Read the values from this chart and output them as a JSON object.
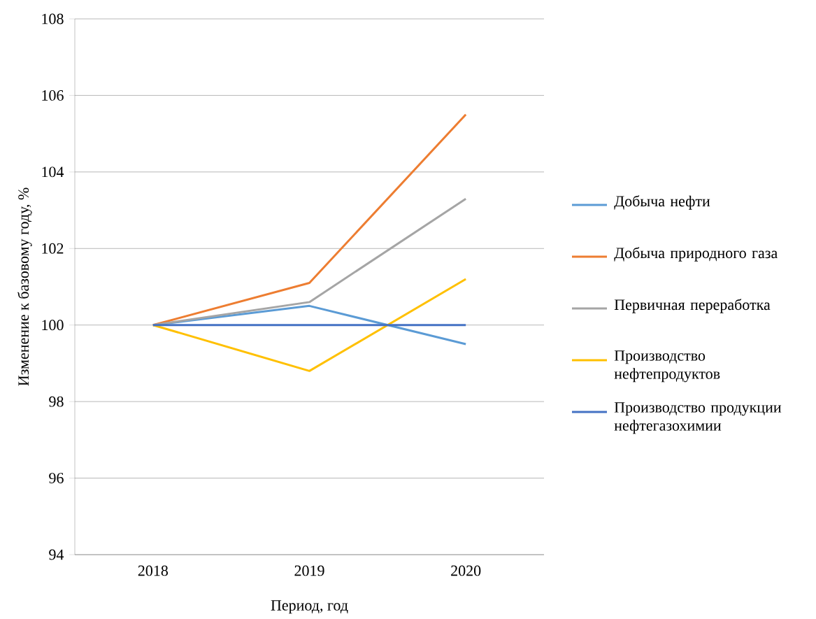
{
  "chart_data": {
    "type": "line",
    "xlabel": "Период, год",
    "ylabel": "Изменение к базовому году,  %",
    "categories": [
      "2018",
      "2019",
      "2020"
    ],
    "series": [
      {
        "name": "Добыча нефти",
        "color": "#5b9bd5",
        "values": [
          100,
          100.5,
          99.5
        ]
      },
      {
        "name": "Добыча природного газа",
        "color": "#ed7d31",
        "values": [
          100,
          101.1,
          105.5
        ]
      },
      {
        "name": "Первичная переработка",
        "color": "#a5a5a5",
        "values": [
          100,
          100.6,
          103.3
        ]
      },
      {
        "name": "Производство нефтепродуктов",
        "color": "#ffc000",
        "values": [
          100,
          98.8,
          101.2
        ]
      },
      {
        "name": "Производство продукции нефтегазохимии",
        "color": "#4472c4",
        "values": [
          100,
          100,
          100
        ]
      }
    ],
    "ylim": [
      94,
      108
    ],
    "yticks": [
      94,
      96,
      98,
      100,
      102,
      104,
      106,
      108
    ],
    "grid": "y",
    "legend": "right",
    "marker": "none",
    "line_style": "solid"
  }
}
